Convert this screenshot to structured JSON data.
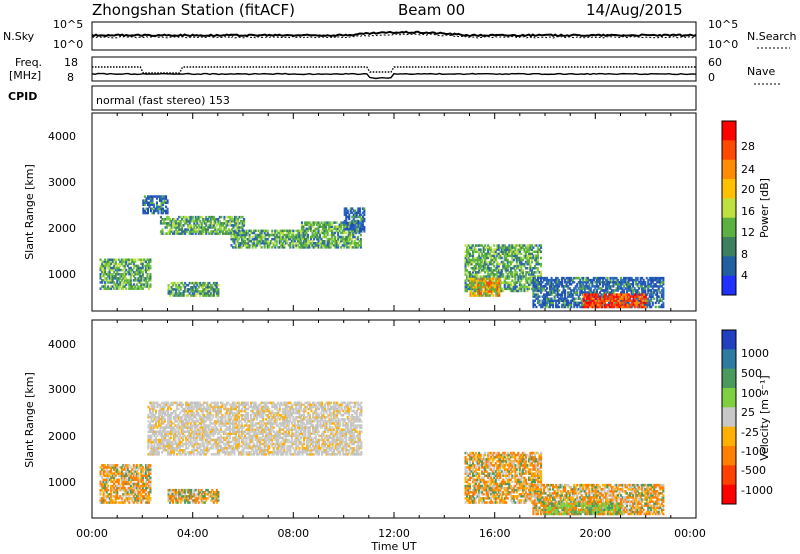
{
  "header": {
    "station": "Zhongshan Station (fitACF)",
    "beam": "Beam 00",
    "date": "14/Aug/2015"
  },
  "sky_panel": {
    "left_label": "N.Sky",
    "right_label": "N.Search",
    "left_ticks": [
      "10^5",
      "10^0"
    ],
    "right_ticks": [
      "10^5",
      "10^0"
    ]
  },
  "freq_panel": {
    "left_label_1": "Freq.",
    "left_label_2": "[MHz]",
    "right_label": "Nave",
    "left_ticks": [
      "18",
      "8"
    ],
    "right_ticks": [
      "60",
      "0"
    ]
  },
  "cpid": {
    "label": "CPID",
    "mode_text": "normal (fast stereo) 153"
  },
  "power_panel": {
    "ylabel": "Slant Range [km]",
    "yticks": [
      "4000",
      "3000",
      "2000",
      "1000"
    ],
    "colorbar_label": "Power [dB]",
    "colorbar_ticks": [
      "28",
      "24",
      "20",
      "16",
      "12",
      "8",
      "4"
    ],
    "colorbar_colors": [
      "#ff0000",
      "#ff4800",
      "#ff8c00",
      "#ffc000",
      "#bfe040",
      "#5ab040",
      "#3c8060",
      "#2060a0",
      "#2030ff"
    ]
  },
  "velocity_panel": {
    "ylabel": "Slant Range [km]",
    "yticks": [
      "4000",
      "3000",
      "2000",
      "1000"
    ],
    "colorbar_label": "Velocity [m s⁻¹]",
    "colorbar_ticks": [
      "1000",
      "500",
      "100",
      "25",
      "-25",
      "-100",
      "-500",
      "-1000"
    ],
    "colorbar_colors": [
      "#2040c0",
      "#2e7aa0",
      "#4a9a60",
      "#7fd040",
      "#c8c8c8",
      "#ffb000",
      "#ff8000",
      "#ff4000",
      "#ff0000"
    ]
  },
  "xaxis": {
    "ticks": [
      "00:00",
      "04:00",
      "08:00",
      "12:00",
      "16:00",
      "20:00",
      "00:00"
    ],
    "label": "Time UT"
  },
  "chart_data": [
    {
      "type": "heatmap",
      "name": "power",
      "x_range_hours": [
        0,
        24
      ],
      "y_range_km": [
        180,
        4500
      ],
      "regions": [
        {
          "t0": 0.3,
          "t1": 2.3,
          "r0": 650,
          "r1": 1300,
          "level": "green"
        },
        {
          "t0": 2.0,
          "t1": 3.0,
          "r0": 2300,
          "r1": 2700,
          "level": "blue"
        },
        {
          "t0": 2.7,
          "t1": 6.0,
          "r0": 1850,
          "r1": 2250,
          "level": "green"
        },
        {
          "t0": 5.5,
          "t1": 8.5,
          "r0": 1550,
          "r1": 1950,
          "level": "green"
        },
        {
          "t0": 8.3,
          "t1": 10.7,
          "r0": 1550,
          "r1": 2100,
          "level": "green"
        },
        {
          "t0": 10.0,
          "t1": 10.8,
          "r0": 1900,
          "r1": 2400,
          "level": "blue"
        },
        {
          "t0": 3.0,
          "t1": 5.0,
          "r0": 500,
          "r1": 800,
          "level": "green"
        },
        {
          "t0": 14.8,
          "t1": 17.8,
          "r0": 600,
          "r1": 1600,
          "level": "green"
        },
        {
          "t0": 15.0,
          "t1": 16.2,
          "r0": 500,
          "r1": 900,
          "level": "orange"
        },
        {
          "t0": 17.5,
          "t1": 22.7,
          "r0": 250,
          "r1": 900,
          "level": "blue"
        },
        {
          "t0": 19.5,
          "t1": 22.0,
          "r0": 250,
          "r1": 550,
          "level": "red"
        }
      ]
    },
    {
      "type": "heatmap",
      "name": "velocity",
      "x_range_hours": [
        0,
        24
      ],
      "y_range_km": [
        180,
        4500
      ],
      "regions": [
        {
          "t0": 0.3,
          "t1": 2.3,
          "r0": 500,
          "r1": 1350,
          "level": "orange"
        },
        {
          "t0": 2.2,
          "t1": 10.7,
          "r0": 1550,
          "r1": 2700,
          "level": "grey"
        },
        {
          "t0": 3.0,
          "t1": 5.0,
          "r0": 500,
          "r1": 800,
          "level": "orange"
        },
        {
          "t0": 14.8,
          "t1": 17.8,
          "r0": 500,
          "r1": 1600,
          "level": "orange"
        },
        {
          "t0": 17.5,
          "t1": 22.7,
          "r0": 250,
          "r1": 900,
          "level": "orange"
        },
        {
          "t0": 18.0,
          "t1": 21.0,
          "r0": 250,
          "r1": 500,
          "level": "green"
        }
      ]
    }
  ]
}
